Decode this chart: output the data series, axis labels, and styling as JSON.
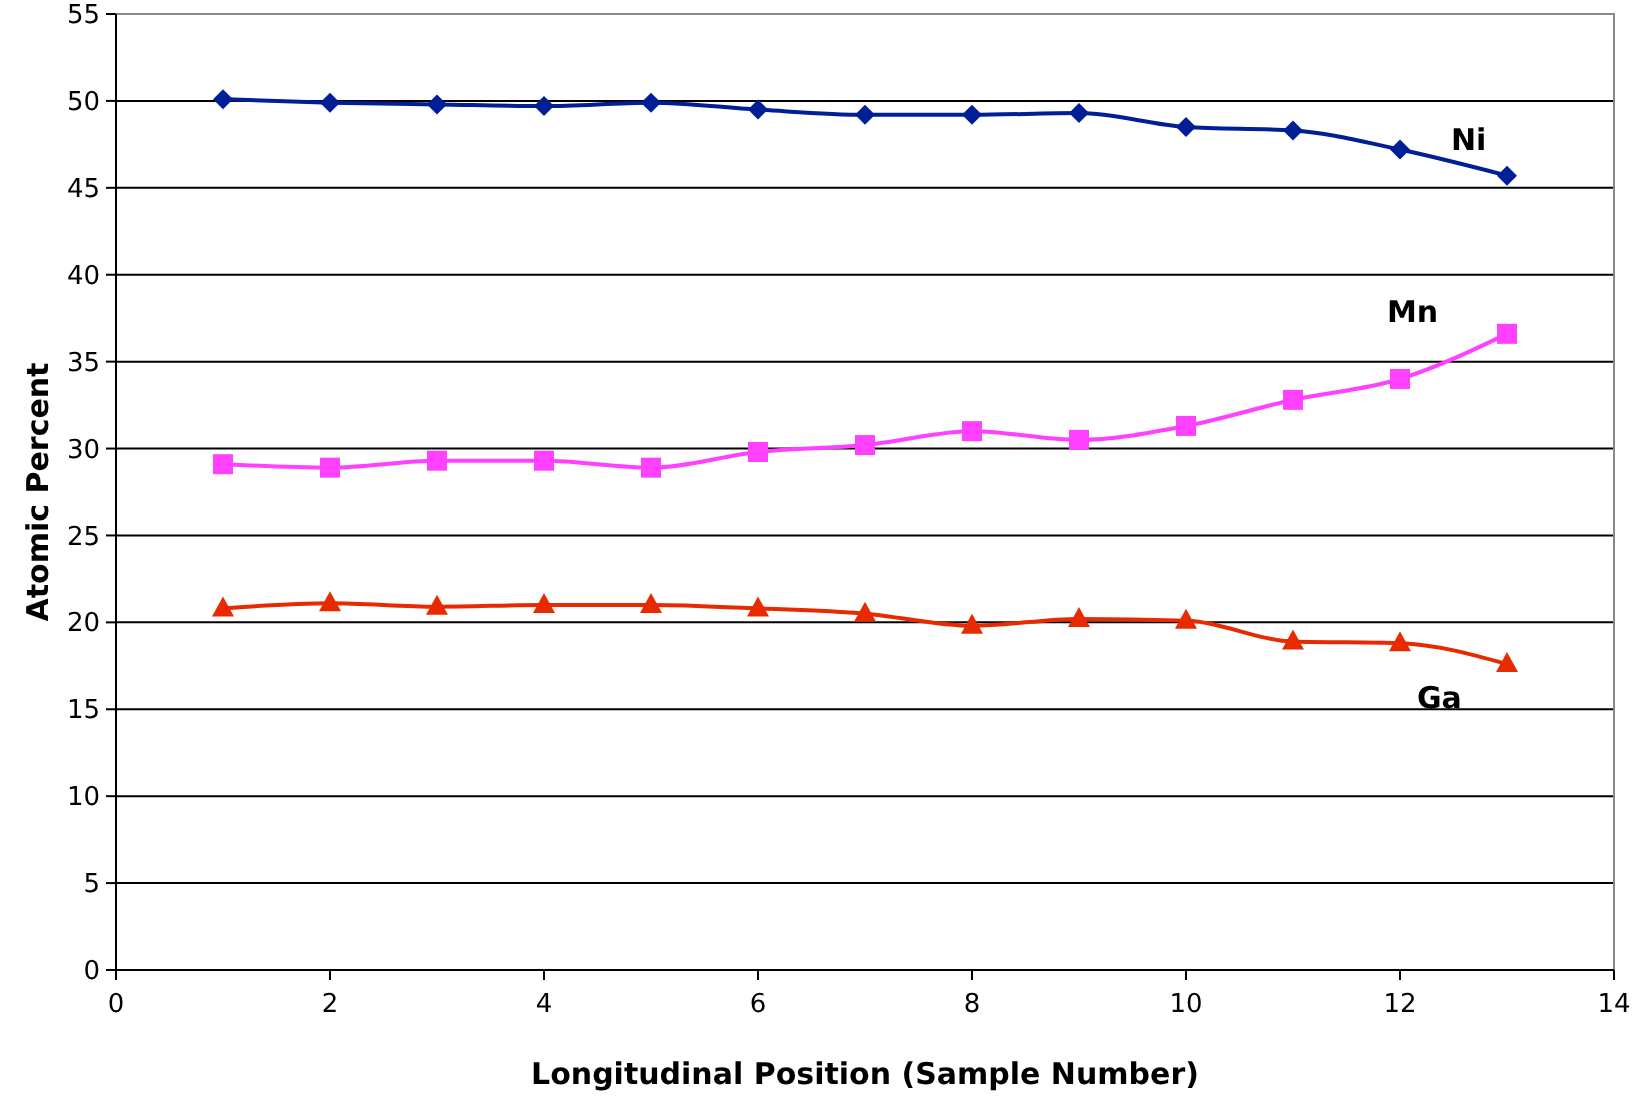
{
  "chart_data": {
    "type": "line",
    "xlabel": "Longitudinal Position (Sample Number)",
    "ylabel": "Atomic Percent",
    "x": [
      1,
      2,
      3,
      4,
      5,
      6,
      7,
      8,
      9,
      10,
      11,
      12,
      13
    ],
    "xlim": [
      0,
      14
    ],
    "xticks": [
      0,
      2,
      4,
      6,
      8,
      10,
      12,
      14
    ],
    "ylim": [
      0,
      55
    ],
    "yticks": [
      0,
      5,
      10,
      15,
      20,
      25,
      30,
      35,
      40,
      45,
      50,
      55
    ],
    "grid": "y",
    "series": [
      {
        "name": "Ni",
        "color": "#001e96",
        "marker": "diamond",
        "values": [
          50.1,
          49.9,
          49.8,
          49.7,
          49.9,
          49.5,
          49.2,
          49.2,
          49.3,
          48.5,
          48.3,
          47.2,
          45.7
        ]
      },
      {
        "name": "Mn",
        "color": "#ff40ff",
        "marker": "square",
        "values": [
          29.1,
          28.9,
          29.3,
          29.3,
          28.9,
          29.8,
          30.2,
          31.0,
          30.5,
          31.3,
          32.8,
          34.0,
          36.6
        ]
      },
      {
        "name": "Ga",
        "color": "#e82a00",
        "marker": "triangle",
        "values": [
          20.8,
          21.1,
          20.9,
          21.0,
          21.0,
          20.8,
          20.5,
          19.8,
          20.2,
          20.1,
          18.9,
          18.8,
          17.6
        ]
      }
    ]
  }
}
